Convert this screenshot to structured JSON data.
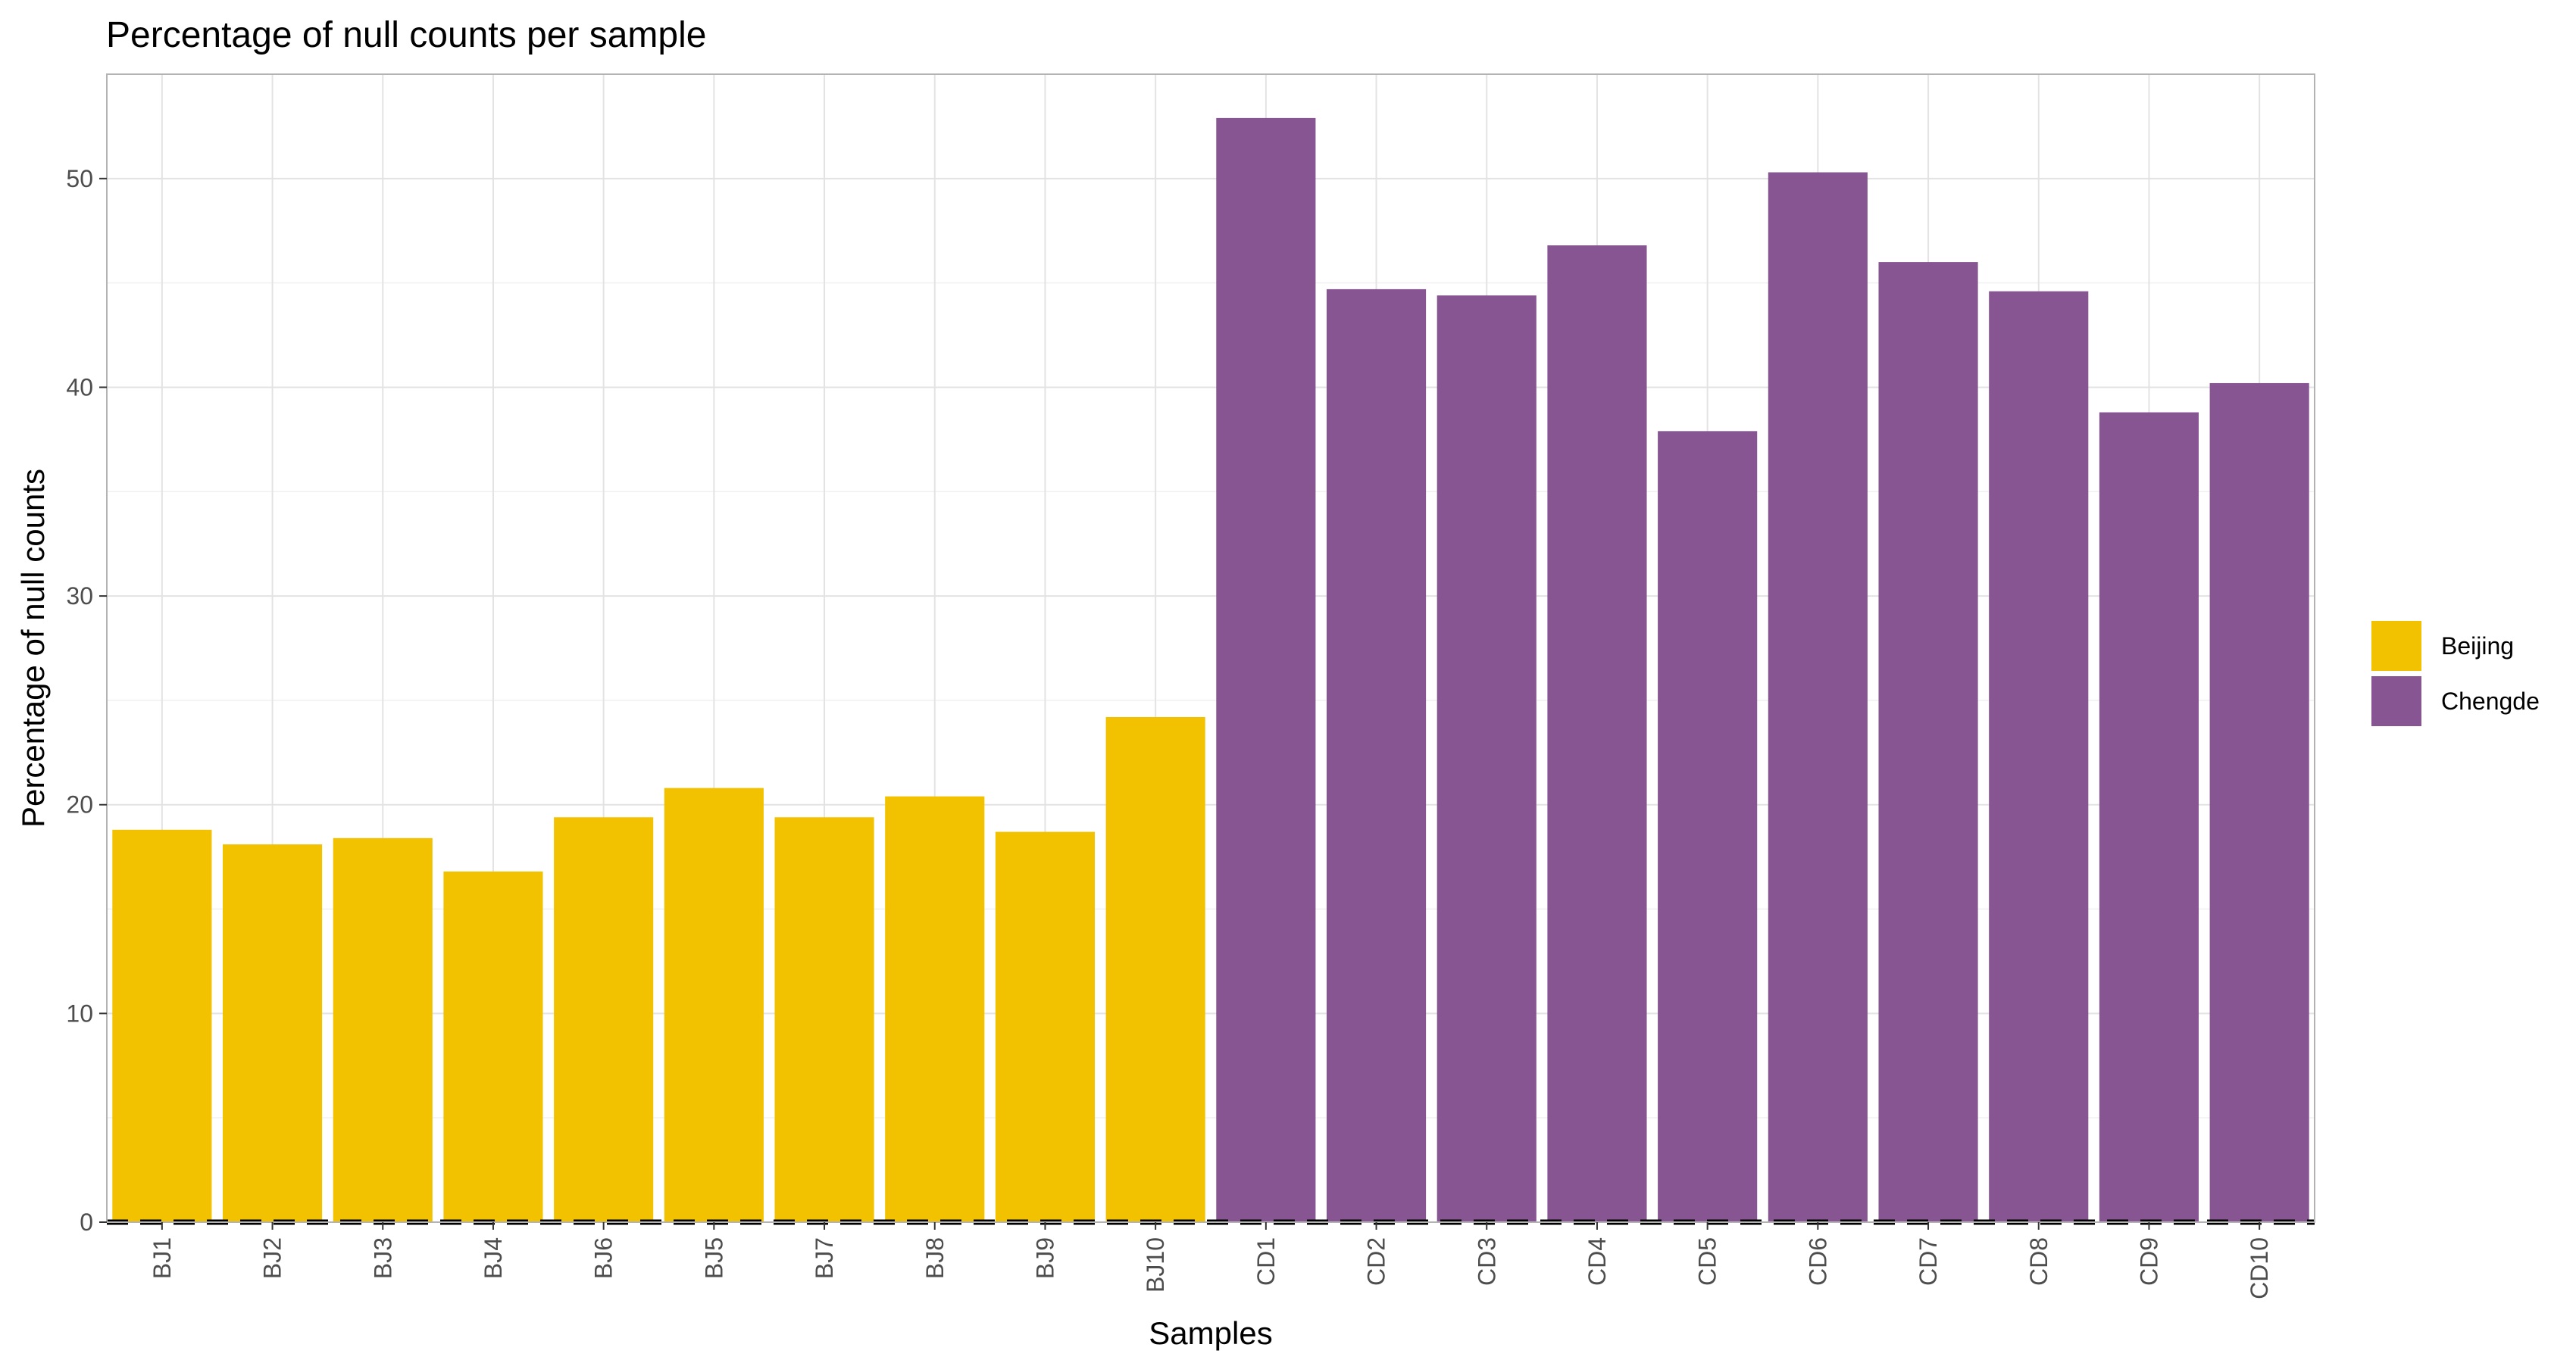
{
  "chart_data": {
    "type": "bar",
    "title": "Percentage of null counts per sample",
    "xlabel": "Samples",
    "ylabel": "Percentage of null counts",
    "ylim": [
      0,
      55
    ],
    "yticks": [
      0,
      10,
      20,
      30,
      40,
      50
    ],
    "grid": true,
    "legend_position": "right",
    "categories": [
      "BJ1",
      "BJ2",
      "BJ3",
      "BJ4",
      "BJ6",
      "BJ5",
      "BJ7",
      "BJ8",
      "BJ9",
      "BJ10",
      "CD1",
      "CD2",
      "CD3",
      "CD4",
      "CD5",
      "CD6",
      "CD7",
      "CD8",
      "CD9",
      "CD10"
    ],
    "values": [
      18.8,
      18.1,
      18.4,
      16.8,
      19.4,
      20.8,
      19.4,
      20.4,
      18.7,
      24.2,
      52.9,
      44.7,
      44.4,
      46.8,
      37.9,
      50.3,
      46.0,
      44.6,
      38.8,
      40.2
    ],
    "groups": [
      "Beijing",
      "Beijing",
      "Beijing",
      "Beijing",
      "Beijing",
      "Beijing",
      "Beijing",
      "Beijing",
      "Beijing",
      "Beijing",
      "Chengde",
      "Chengde",
      "Chengde",
      "Chengde",
      "Chengde",
      "Chengde",
      "Chengde",
      "Chengde",
      "Chengde",
      "Chengde"
    ],
    "legend": [
      {
        "name": "Beijing",
        "color": "#F2C200"
      },
      {
        "name": "Chengde",
        "color": "#875692"
      }
    ],
    "reference_line": {
      "y": 0,
      "style": "dashed",
      "color": "#000000"
    }
  }
}
